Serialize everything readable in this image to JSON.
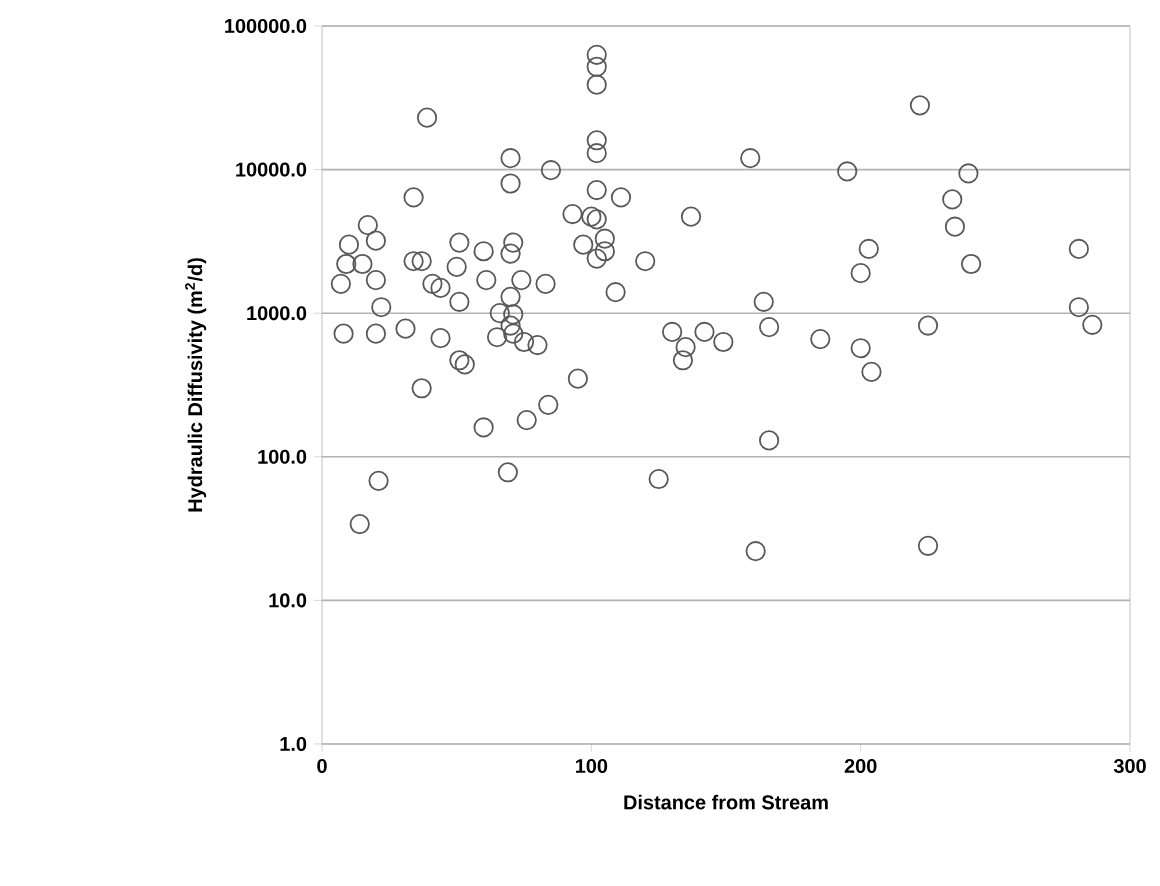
{
  "chart_data": {
    "type": "scatter",
    "xlabel": "Distance from Stream",
    "ylabel": "Hydraulic  Diffusivity (m$^{2}$/d)",
    "xlim": [
      0,
      300
    ],
    "xticks": [
      0,
      100,
      200,
      300
    ],
    "ylim": [
      1,
      100000
    ],
    "yticks": [
      {
        "value": 1,
        "label": "1.0"
      },
      {
        "value": 10,
        "label": "10.0"
      },
      {
        "value": 100,
        "label": "100.0"
      },
      {
        "value": 1000,
        "label": "1000.0"
      },
      {
        "value": 10000,
        "label": "10000.0"
      },
      {
        "value": 100000,
        "label": "100000.0"
      }
    ],
    "log": "y",
    "grid": "y",
    "marker": "circle",
    "series": [
      {
        "color": "#595959",
        "x": [
          102,
          102,
          102,
          39,
          102,
          102,
          70,
          85,
          70,
          102,
          111,
          34,
          137,
          93,
          100,
          102,
          17,
          10,
          20,
          51,
          71,
          105,
          60,
          70,
          97,
          105,
          9,
          15,
          34,
          37,
          50,
          102,
          120,
          7,
          20,
          41,
          44,
          61,
          74,
          83,
          109,
          51,
          70,
          22,
          66,
          71,
          8,
          20,
          31,
          44,
          70,
          71,
          65,
          75,
          80,
          51,
          53,
          95,
          37,
          130,
          142,
          135,
          134,
          60,
          76,
          84,
          69,
          21,
          14,
          125,
          222,
          159,
          195,
          240,
          234,
          235,
          203,
          200,
          281,
          241,
          164,
          281,
          286,
          166,
          225,
          149,
          185,
          200,
          204,
          166,
          161,
          225
        ],
        "values": [
          63000,
          52000,
          39000,
          23000,
          16000,
          13000,
          12000,
          9900,
          8000,
          7200,
          6400,
          6400,
          4700,
          4900,
          4700,
          4500,
          4100,
          3000,
          3200,
          3100,
          3100,
          3300,
          2700,
          2600,
          3000,
          2700,
          2200,
          2200,
          2300,
          2300,
          2100,
          2400,
          2300,
          1600,
          1700,
          1600,
          1500,
          1700,
          1700,
          1600,
          1400,
          1200,
          1300,
          1100,
          1000,
          980,
          720,
          720,
          780,
          670,
          820,
          720,
          680,
          630,
          600,
          470,
          440,
          350,
          300,
          740,
          740,
          580,
          470,
          160,
          180,
          230,
          78,
          68,
          34,
          70,
          28000,
          12000,
          9700,
          9400,
          6200,
          4000,
          2800,
          1900,
          2800,
          2200,
          1200,
          1100,
          830,
          800,
          820,
          630,
          660,
          570,
          390,
          130,
          22,
          24
        ]
      }
    ]
  }
}
